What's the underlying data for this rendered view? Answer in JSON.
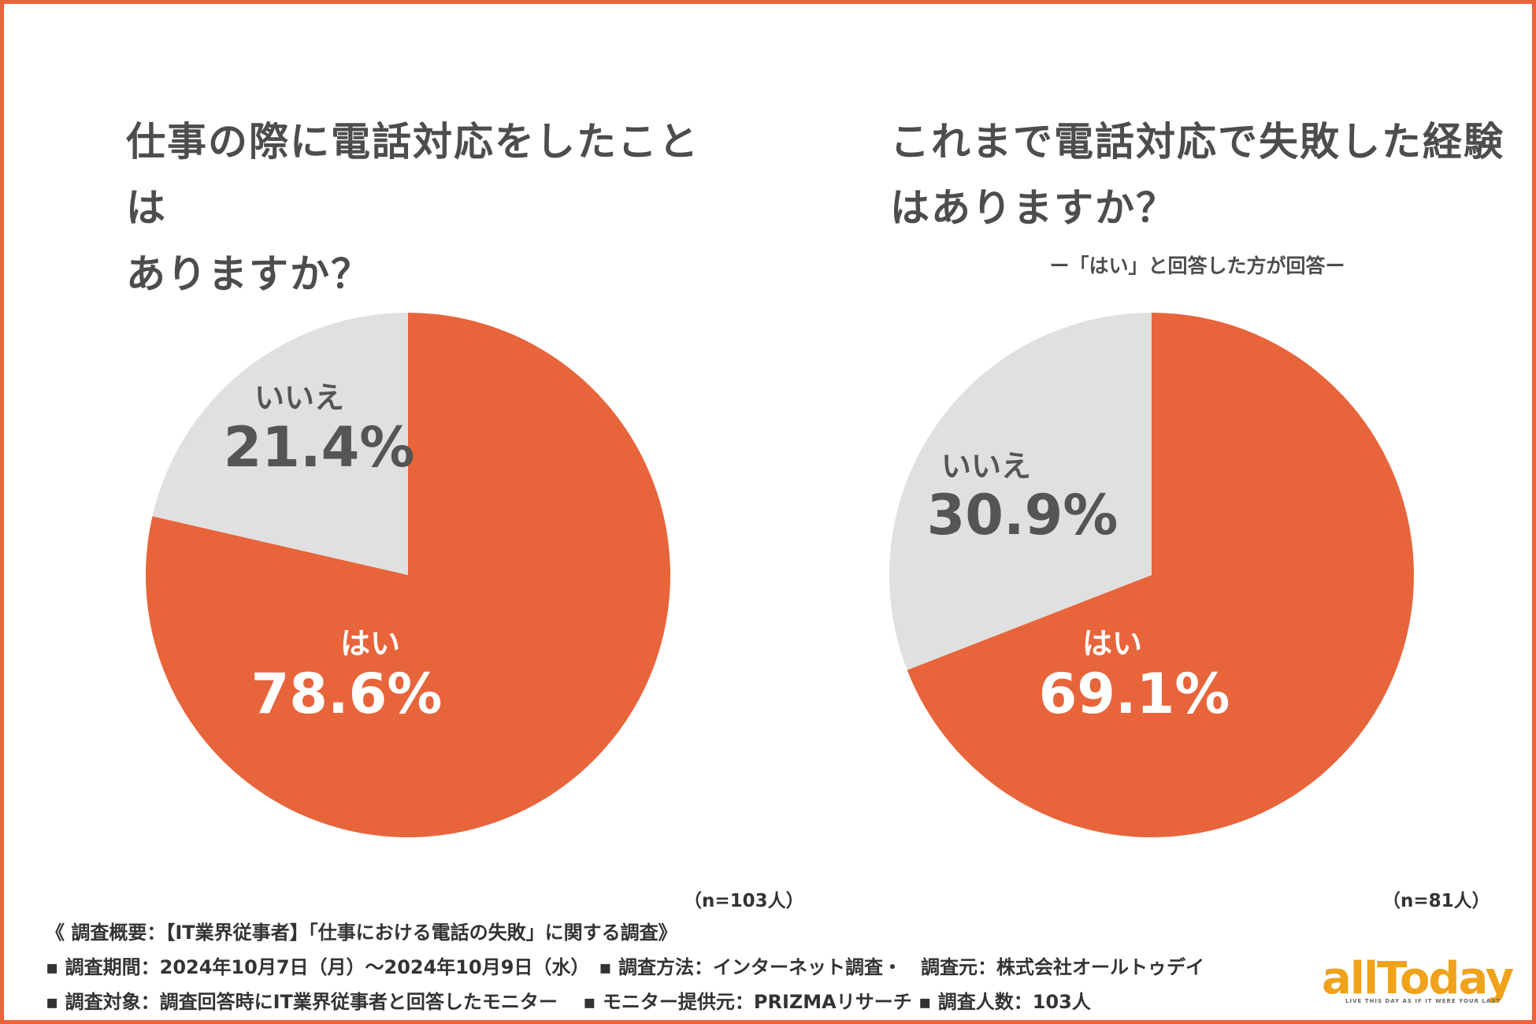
{
  "colors": {
    "yes": "#e8643a",
    "no": "#e0e0e0",
    "frame": "#e8643a",
    "logo": "#f0a21a"
  },
  "chart_data": [
    {
      "type": "pie",
      "title": "仕事の際に電話対応をしたことはありますか？",
      "title_lines": [
        "仕事の際に電話対応をしたことは",
        "ありますか？"
      ],
      "slices": [
        {
          "label": "はい",
          "value": 78.6,
          "display": "78.6%"
        },
        {
          "label": "いいえ",
          "value": 21.4,
          "display": "21.4%"
        }
      ],
      "n": "（n=103人）"
    },
    {
      "type": "pie",
      "title": "これまで電話対応で失敗した経験はありますか？",
      "title_lines": [
        "これまで電話対応で失敗した経験",
        "はありますか？"
      ],
      "subtitle": "ー「はい」と回答した方が回答ー",
      "slices": [
        {
          "label": "はい",
          "value": 69.1,
          "display": "69.1%"
        },
        {
          "label": "いいえ",
          "value": 30.9,
          "display": "30.9%"
        }
      ],
      "n": "（n=81人）"
    }
  ],
  "footer": {
    "heading": "《 調査概要：【IT業界従事者】「仕事における電話の失敗」に関する調査》",
    "line1": "▪ 調査期間：2024年10月7日（月）〜2024年10月9日（水）　▪ 調査方法：インターネット調査・　調査元：株式会社オールトゥデイ",
    "line2": "▪ 調査対象：調査回答時にIT業界従事者と回答したモニター　 ▪ モニター提供元：PRIZMAリサーチ ▪ 調査人数：103人"
  },
  "logo": {
    "text": "allToday",
    "tagline": "LIVE THIS DAY AS IF IT WERE YOUR LAST"
  }
}
